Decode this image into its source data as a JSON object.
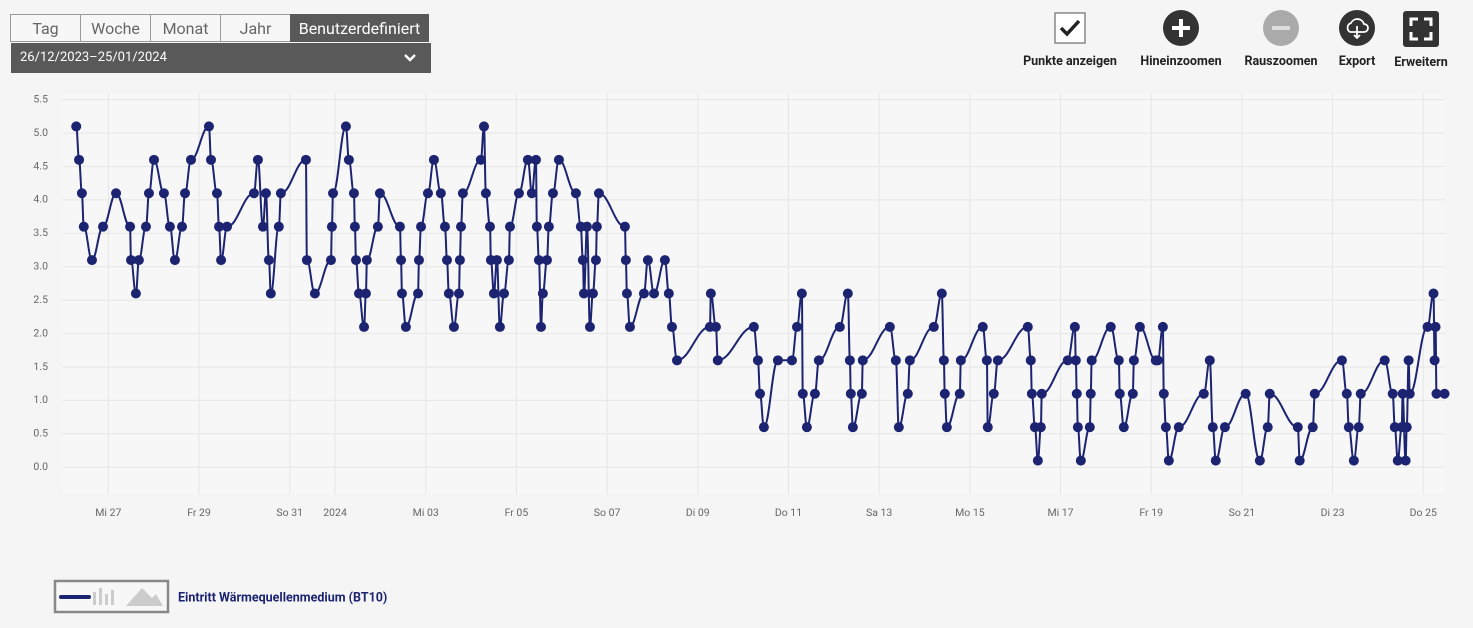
{
  "toolbar": {
    "tabs": [
      "Tag",
      "Woche",
      "Monat",
      "Jahr",
      "Benutzerdefiniert"
    ],
    "active_tab": 4,
    "date_range": "26/12/2023–25/01/2024",
    "buttons": [
      "Punkte anzeigen",
      "Hineinzoomen",
      "Rauszoomen",
      "Export",
      "Erweitern"
    ],
    "show_points": true
  },
  "chart_data": {
    "type": "line",
    "markers": true,
    "grid": true,
    "x": [
      "2023-12-26T07:00",
      "2023-12-26T08:30",
      "2023-12-26T10:00",
      "2023-12-26T11:00",
      "2023-12-26T15:20",
      "2023-12-26T21:10",
      "2023-12-27T04:05",
      "2023-12-27T11:30",
      "2023-12-27T12:00",
      "2023-12-27T14:35",
      "2023-12-27T16:10",
      "2023-12-27T19:55",
      "2023-12-27T21:30",
      "2023-12-28T00:10",
      "2023-12-28T05:25",
      "2023-12-28T08:35",
      "2023-12-28T11:15",
      "2023-12-28T15:00",
      "2023-12-28T16:35",
      "2023-12-28T19:45",
      "2023-12-29T05:15",
      "2023-12-29T06:20",
      "2023-12-29T09:30",
      "2023-12-29T10:35",
      "2023-12-29T11:40",
      "2023-12-29T14:50",
      "2023-12-30T05:05",
      "2023-12-30T07:10",
      "2023-12-30T09:50",
      "2023-12-30T11:25",
      "2023-12-30T13:00",
      "2023-12-30T14:00",
      "2023-12-30T18:15",
      "2023-12-30T19:20",
      "2023-12-31T08:35",
      "2023-12-31T09:05",
      "2023-12-31T13:20",
      "2023-12-31T21:50",
      "2023-12-31T22:20",
      "2023-12-31T22:55",
      "2024-01-01T05:45",
      "2024-01-01T07:20",
      "2024-01-01T10:00",
      "2024-01-01T10:30",
      "2024-01-01T11:05",
      "2024-01-01T12:40",
      "2024-01-01T15:20",
      "2024-01-01T16:20",
      "2024-01-01T16:50",
      "2024-01-01T22:40",
      "2024-01-01T23:45",
      "2024-01-02T10:20",
      "2024-01-02T10:55",
      "2024-01-02T11:25",
      "2024-01-02T13:30",
      "2024-01-02T19:55",
      "2024-01-02T20:25",
      "2024-01-02T21:30",
      "2024-01-03T01:10",
      "2024-01-03T04:20",
      "2024-01-03T08:00",
      "2024-01-03T10:10",
      "2024-01-03T11:15",
      "2024-01-03T12:15",
      "2024-01-03T14:55",
      "2024-01-03T17:35",
      "2024-01-03T18:05",
      "2024-01-03T18:40",
      "2024-01-03T19:40",
      "2024-01-04T05:10",
      "2024-01-04T06:50",
      "2024-01-04T07:50",
      "2024-01-04T10:00",
      "2024-01-04T10:30",
      "2024-01-04T12:05",
      "2024-01-04T13:40",
      "2024-01-04T15:15",
      "2024-01-04T17:25",
      "2024-01-04T20:00",
      "2024-01-04T20:35",
      "2024-01-05T01:20",
      "2024-01-05T06:05",
      "2024-01-05T08:10",
      "2024-01-05T10:20",
      "2024-01-05T10:50",
      "2024-01-05T11:55",
      "2024-01-05T13:00",
      "2024-01-05T14:00",
      "2024-01-05T16:10",
      "2024-01-05T17:10",
      "2024-01-05T19:20",
      "2024-01-05T22:30",
      "2024-01-06T07:30",
      "2024-01-06T10:05",
      "2024-01-06T11:10",
      "2024-01-06T11:45",
      "2024-01-06T13:20",
      "2024-01-06T14:55",
      "2024-01-06T16:30",
      "2024-01-06T18:05",
      "2024-01-06T18:35",
      "2024-01-06T19:40",
      "2024-01-07T09:25",
      "2024-01-07T09:55",
      "2024-01-07T10:30",
      "2024-01-07T12:05",
      "2024-01-07T19:30",
      "2024-01-07T21:35",
      "2024-01-08T00:50",
      "2024-01-08T06:35",
      "2024-01-08T08:40",
      "2024-01-08T10:20",
      "2024-01-08T13:00",
      "2024-01-09T06:25",
      "2024-01-09T06:55",
      "2024-01-09T09:35",
      "2024-01-09T10:35",
      "2024-01-10T05:40",
      "2024-01-10T07:50",
      "2024-01-10T08:55",
      "2024-01-10T11:00",
      "2024-01-10T18:25",
      "2024-01-11T01:50",
      "2024-01-11T04:30",
      "2024-01-11T07:05",
      "2024-01-11T07:35",
      "2024-01-11T09:45",
      "2024-01-11T14:00",
      "2024-01-11T16:05",
      "2024-01-12T03:10",
      "2024-01-12T07:25",
      "2024-01-12T08:30",
      "2024-01-12T09:00",
      "2024-01-12T10:05",
      "2024-01-12T14:50",
      "2024-01-12T15:20",
      "2024-01-13T05:40",
      "2024-01-13T08:50",
      "2024-01-13T10:25",
      "2024-01-13T15:10",
      "2024-01-13T16:15",
      "2024-01-14T04:55",
      "2024-01-14T09:10",
      "2024-01-14T10:15",
      "2024-01-14T10:45",
      "2024-01-14T11:50",
      "2024-01-14T18:40",
      "2024-01-14T19:15",
      "2024-01-15T06:50",
      "2024-01-15T09:00",
      "2024-01-15T09:30",
      "2024-01-15T12:40",
      "2024-01-15T14:50",
      "2024-01-16T06:40",
      "2024-01-16T08:15",
      "2024-01-16T08:50",
      "2024-01-16T10:25",
      "2024-01-16T12:00",
      "2024-01-16T13:35",
      "2024-01-16T14:05",
      "2024-01-17T03:50",
      "2024-01-17T07:35",
      "2024-01-17T08:05",
      "2024-01-17T08:35",
      "2024-01-17T09:10",
      "2024-01-17T10:45",
      "2024-01-17T15:30",
      "2024-01-17T16:00",
      "2024-01-17T16:30",
      "2024-01-18T02:35",
      "2024-01-18T06:50",
      "2024-01-18T07:20",
      "2024-01-18T09:30",
      "2024-01-18T14:15",
      "2024-01-18T14:50",
      "2024-01-18T18:00",
      "2024-01-19T02:25",
      "2024-01-19T03:30",
      "2024-01-19T06:10",
      "2024-01-19T06:40",
      "2024-01-19T07:45",
      "2024-01-19T09:20",
      "2024-01-19T14:35",
      "2024-01-20T03:50",
      "2024-01-20T07:00",
      "2024-01-20T08:35",
      "2024-01-20T10:10",
      "2024-01-20T15:00",
      "2024-01-21T02:00",
      "2024-01-21T09:30",
      "2024-01-21T13:40",
      "2024-01-21T14:45",
      "2024-01-22T05:35",
      "2024-01-22T06:35",
      "2024-01-22T13:30",
      "2024-01-22T14:35",
      "2024-01-23T04:55",
      "2024-01-23T07:30",
      "2024-01-23T08:35",
      "2024-01-23T11:15",
      "2024-01-23T13:50",
      "2024-01-23T14:55",
      "2024-01-24T03:35",
      "2024-01-24T07:50",
      "2024-01-24T08:55",
      "2024-01-24T10:30",
      "2024-01-24T12:35",
      "2024-01-24T13:05",
      "2024-01-24T14:40",
      "2024-01-24T15:15",
      "2024-01-24T16:15",
      "2024-01-24T16:50",
      "2024-01-25T02:15",
      "2024-01-25T05:25",
      "2024-01-25T06:00",
      "2024-01-25T06:30",
      "2024-01-25T07:00",
      "2024-01-25T11:15"
    ],
    "series": [
      {
        "name": "Eintritt Wärmequellenmedium (BT10)",
        "color": "#1c2472",
        "values": [
          5.1,
          4.6,
          4.1,
          3.6,
          3.1,
          3.6,
          4.1,
          3.6,
          3.1,
          2.6,
          3.1,
          3.6,
          4.1,
          4.6,
          4.1,
          3.6,
          3.1,
          3.6,
          4.1,
          4.6,
          5.1,
          4.6,
          4.1,
          3.6,
          3.1,
          3.6,
          4.1,
          4.6,
          3.6,
          4.1,
          3.1,
          2.6,
          3.6,
          4.1,
          4.6,
          3.1,
          2.6,
          3.1,
          3.6,
          4.1,
          5.1,
          4.6,
          4.1,
          3.6,
          3.1,
          2.6,
          2.1,
          2.6,
          3.1,
          3.6,
          4.1,
          3.6,
          3.1,
          2.6,
          2.1,
          2.6,
          3.1,
          3.6,
          4.1,
          4.6,
          4.1,
          3.6,
          3.1,
          2.6,
          2.1,
          2.6,
          3.1,
          3.6,
          4.1,
          4.6,
          5.1,
          4.1,
          3.6,
          3.1,
          2.6,
          3.1,
          2.1,
          2.6,
          3.1,
          3.6,
          4.1,
          4.6,
          4.1,
          4.6,
          3.6,
          3.1,
          2.1,
          2.6,
          3.1,
          3.6,
          4.1,
          4.6,
          4.1,
          3.6,
          3.1,
          2.6,
          3.6,
          2.1,
          2.6,
          3.1,
          3.6,
          4.1,
          3.6,
          3.1,
          2.6,
          2.1,
          2.6,
          3.1,
          2.6,
          3.1,
          2.6,
          2.1,
          1.6,
          2.1,
          2.6,
          2.1,
          1.6,
          2.1,
          1.6,
          1.1,
          0.6,
          1.6,
          1.6,
          2.1,
          2.6,
          1.1,
          0.6,
          1.1,
          1.6,
          2.1,
          2.6,
          1.6,
          1.1,
          0.6,
          1.1,
          1.6,
          2.1,
          1.6,
          0.6,
          1.1,
          1.6,
          2.1,
          2.6,
          1.6,
          1.1,
          0.6,
          1.1,
          1.6,
          2.1,
          1.6,
          0.6,
          1.1,
          1.6,
          2.1,
          1.6,
          1.1,
          0.6,
          0.1,
          0.6,
          1.1,
          1.6,
          2.1,
          1.6,
          1.1,
          0.6,
          0.1,
          0.6,
          1.1,
          1.6,
          2.1,
          1.6,
          1.1,
          0.6,
          1.1,
          1.6,
          2.1,
          1.6,
          1.6,
          2.1,
          1.1,
          0.6,
          0.1,
          0.6,
          1.1,
          1.6,
          0.6,
          0.1,
          0.6,
          1.1,
          0.1,
          0.6,
          1.1,
          0.6,
          0.1,
          0.6,
          1.1,
          1.6,
          1.1,
          0.6,
          0.1,
          0.6,
          1.1,
          1.6,
          1.1,
          0.6,
          0.1,
          0.6,
          1.1,
          0.1,
          0.6,
          1.6,
          1.1,
          2.1,
          2.6,
          1.6,
          2.1,
          1.1,
          1.1
        ]
      }
    ],
    "xlim": [
      "2023-12-26T00:00",
      "2024-01-25T11:30"
    ],
    "xticks": [
      {
        "value": "2023-12-27T00:00",
        "label": "Mi 27"
      },
      {
        "value": "2023-12-29T00:00",
        "label": "Fr 29"
      },
      {
        "value": "2023-12-31T00:00",
        "label": "So 31"
      },
      {
        "value": "2024-01-01T00:00",
        "label": "2024"
      },
      {
        "value": "2024-01-03T00:00",
        "label": "Mi 03"
      },
      {
        "value": "2024-01-05T00:00",
        "label": "Fr 05"
      },
      {
        "value": "2024-01-07T00:00",
        "label": "So 07"
      },
      {
        "value": "2024-01-09T00:00",
        "label": "Di 09"
      },
      {
        "value": "2024-01-11T00:00",
        "label": "Do 11"
      },
      {
        "value": "2024-01-13T00:00",
        "label": "Sa 13"
      },
      {
        "value": "2024-01-15T00:00",
        "label": "Mo 15"
      },
      {
        "value": "2024-01-17T00:00",
        "label": "Mi 17"
      },
      {
        "value": "2024-01-19T00:00",
        "label": "Fr 19"
      },
      {
        "value": "2024-01-21T00:00",
        "label": "So 21"
      },
      {
        "value": "2024-01-23T00:00",
        "label": "Di 23"
      },
      {
        "value": "2024-01-25T00:00",
        "label": "Do 25"
      }
    ],
    "ylim": [
      -0.4,
      5.6
    ],
    "yticks": [
      {
        "value": 0,
        "label": "0.0"
      },
      0.5,
      {
        "value": 1,
        "label": "1.0"
      },
      1.5,
      {
        "value": 2,
        "label": "2.0"
      },
      2.5,
      {
        "value": 3,
        "label": "3.0"
      },
      3.5,
      {
        "value": 4,
        "label": "4.0"
      },
      4.5,
      {
        "value": 5,
        "label": "5.0"
      },
      5.5
    ]
  }
}
